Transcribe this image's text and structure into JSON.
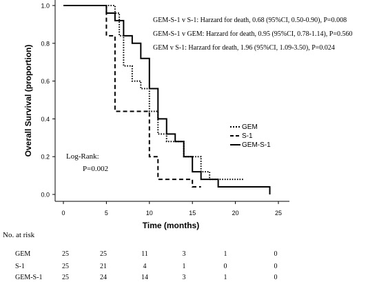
{
  "chart_data": {
    "type": "line",
    "subtype": "kaplan-meier",
    "xlabel": "Time (months)",
    "ylabel": "Overall Survival (proportion)",
    "xlim": [
      0,
      25
    ],
    "ylim": [
      0,
      1.0
    ],
    "x_ticks": [
      "0",
      "5",
      "10",
      "15",
      "20",
      "25"
    ],
    "y_ticks": [
      "0.0",
      "0.2",
      "0.4",
      "0.6",
      "0.8",
      "1.0"
    ],
    "x_tick_values": [
      0,
      5,
      10,
      15,
      20,
      25
    ],
    "y_tick_values": [
      0,
      0.2,
      0.4,
      0.6,
      0.8,
      1.0
    ],
    "grid": false,
    "legend_position": "right",
    "annotations": [
      "GEM-S-1 v S-1: Harzard for death, 0.68 (95%CI, 0.50-0.90), P=0.008",
      "GEM-S-1 v GEM: Harzard for death, 0.95 (95%CI, 0.78-1.14), P=0.560",
      "GEM v S-1: Harzard for death, 1.96 (95%CI, 1.09-3.50), P=0.024"
    ],
    "logrank_label": "Log-Rank:",
    "logrank_p": "P=0.002",
    "series": [
      {
        "name": "GEM",
        "style": "dotted",
        "x": [
          0,
          6,
          6.5,
          7,
          8,
          9,
          10,
          11,
          12,
          14,
          16,
          17,
          21
        ],
        "y": [
          1.0,
          0.96,
          0.84,
          0.68,
          0.6,
          0.56,
          0.44,
          0.32,
          0.28,
          0.2,
          0.12,
          0.08,
          0.08
        ]
      },
      {
        "name": "S-1",
        "style": "dashed",
        "x": [
          0,
          5,
          6,
          7,
          10,
          11,
          12,
          15,
          16
        ],
        "y": [
          1.0,
          0.84,
          0.44,
          0.44,
          0.2,
          0.08,
          0.08,
          0.04,
          0.04
        ]
      },
      {
        "name": "GEM-S-1",
        "style": "solid",
        "x": [
          0,
          5,
          6,
          7,
          8,
          9,
          10,
          11,
          12,
          13,
          14,
          15,
          16,
          18,
          24
        ],
        "y": [
          1.0,
          0.96,
          0.92,
          0.84,
          0.8,
          0.72,
          0.56,
          0.4,
          0.32,
          0.28,
          0.2,
          0.12,
          0.08,
          0.04,
          0.0
        ]
      }
    ]
  },
  "risk_table": {
    "title": "No. at risk",
    "rows": [
      {
        "label": "GEM",
        "values": [
          "25",
          "25",
          "11",
          "3",
          "1",
          "0"
        ]
      },
      {
        "label": "S-1",
        "values": [
          "25",
          "21",
          "4",
          "1",
          "0",
          "0"
        ]
      },
      {
        "label": "GEM-S-1",
        "values": [
          "25",
          "24",
          "14",
          "3",
          "1",
          "0"
        ]
      }
    ]
  }
}
